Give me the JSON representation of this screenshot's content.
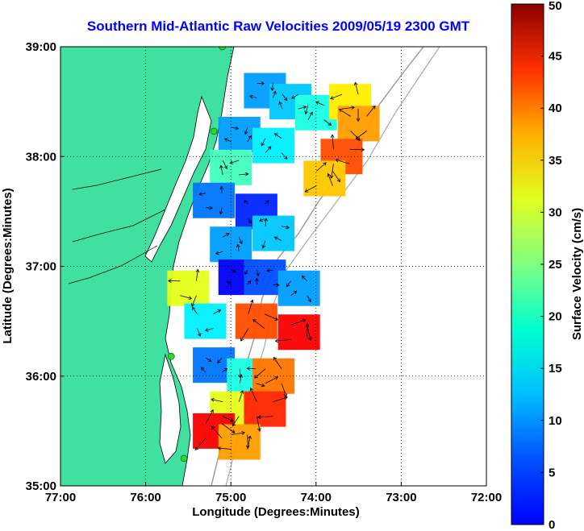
{
  "chart_data": {
    "type": "heatmap",
    "title": "Southern Mid-Atlantic Raw Velocities 2009/05/19 2300 GMT",
    "xlabel": "Longitude (Degrees:Minutes)",
    "ylabel": "Latitude (Degrees:Minutes)",
    "x_ticks": [
      {
        "value": -77,
        "label": "77:00"
      },
      {
        "value": -76,
        "label": "76:00"
      },
      {
        "value": -75,
        "label": "75:00"
      },
      {
        "value": -74,
        "label": "74:00"
      },
      {
        "value": -73,
        "label": "73:00"
      },
      {
        "value": -72,
        "label": "72:00"
      }
    ],
    "y_ticks": [
      {
        "value": 35,
        "label": "35:00"
      },
      {
        "value": 36,
        "label": "36:00"
      },
      {
        "value": 37,
        "label": "37:00"
      },
      {
        "value": 38,
        "label": "38:00"
      },
      {
        "value": 39,
        "label": "39:00"
      }
    ],
    "xlim": [
      -77,
      -72
    ],
    "ylim": [
      35,
      39
    ],
    "grid": true,
    "colorbar": {
      "label": "Surface Velocity (cm/s)",
      "range": [
        0,
        50
      ],
      "ticks": [
        0,
        5,
        10,
        15,
        20,
        25,
        30,
        35,
        40,
        45,
        50
      ],
      "colormap": "jet"
    },
    "field": {
      "description_units": "cm/s",
      "cells": [
        {
          "lon": -74.6,
          "lat": 38.6,
          "speed": 14
        },
        {
          "lon": -74.3,
          "lat": 38.5,
          "speed": 16
        },
        {
          "lon": -74.0,
          "lat": 38.4,
          "speed": 20
        },
        {
          "lon": -73.6,
          "lat": 38.5,
          "speed": 32
        },
        {
          "lon": -73.5,
          "lat": 38.3,
          "speed": 36
        },
        {
          "lon": -73.7,
          "lat": 38.0,
          "speed": 40
        },
        {
          "lon": -73.9,
          "lat": 37.8,
          "speed": 34
        },
        {
          "lon": -74.9,
          "lat": 38.2,
          "speed": 14
        },
        {
          "lon": -75.0,
          "lat": 37.9,
          "speed": 22
        },
        {
          "lon": -74.5,
          "lat": 38.1,
          "speed": 18
        },
        {
          "lon": -75.2,
          "lat": 37.6,
          "speed": 12
        },
        {
          "lon": -74.7,
          "lat": 37.5,
          "speed": 8
        },
        {
          "lon": -74.5,
          "lat": 37.3,
          "speed": 16
        },
        {
          "lon": -75.0,
          "lat": 37.2,
          "speed": 14
        },
        {
          "lon": -74.9,
          "lat": 36.9,
          "speed": 6
        },
        {
          "lon": -74.6,
          "lat": 36.9,
          "speed": 10
        },
        {
          "lon": -74.2,
          "lat": 36.8,
          "speed": 14
        },
        {
          "lon": -75.5,
          "lat": 36.8,
          "speed": 30
        },
        {
          "lon": -75.3,
          "lat": 36.5,
          "speed": 18
        },
        {
          "lon": -74.7,
          "lat": 36.5,
          "speed": 40
        },
        {
          "lon": -74.2,
          "lat": 36.4,
          "speed": 44
        },
        {
          "lon": -75.2,
          "lat": 36.1,
          "speed": 12
        },
        {
          "lon": -74.8,
          "lat": 36.0,
          "speed": 20
        },
        {
          "lon": -74.5,
          "lat": 36.0,
          "speed": 38
        },
        {
          "lon": -75.0,
          "lat": 35.7,
          "speed": 30
        },
        {
          "lon": -74.6,
          "lat": 35.7,
          "speed": 42
        },
        {
          "lon": -75.2,
          "lat": 35.5,
          "speed": 44
        },
        {
          "lon": -74.9,
          "lat": 35.4,
          "speed": 36
        }
      ]
    },
    "stations": [
      {
        "lon": -75.1,
        "lat": 39.0
      },
      {
        "lon": -75.2,
        "lat": 38.23
      },
      {
        "lon": -75.7,
        "lat": 36.18
      },
      {
        "lon": -75.55,
        "lat": 35.25
      }
    ]
  }
}
